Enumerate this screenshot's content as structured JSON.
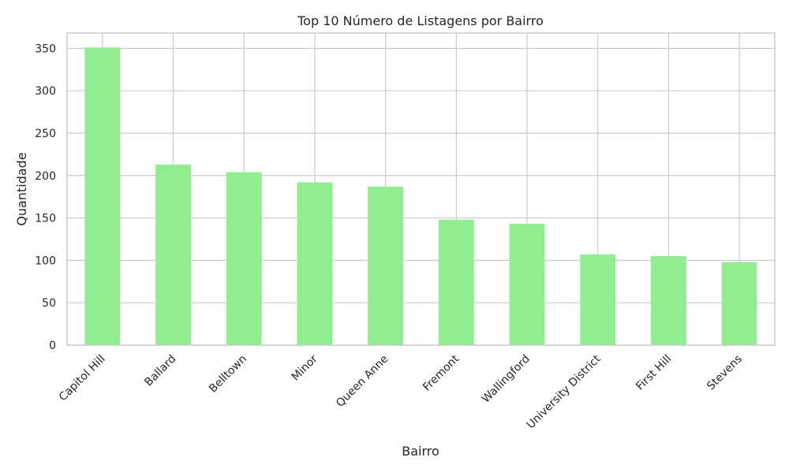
{
  "chart_data": {
    "type": "bar",
    "title": "Top 10 Número de Listagens por Bairro",
    "xlabel": "Bairro",
    "ylabel": "Quantidade",
    "categories": [
      "Capitol Hill",
      "Ballard",
      "Belltown",
      "Minor",
      "Queen Anne",
      "Fremont",
      "Wallingford",
      "University District",
      "First Hill",
      "Stevens"
    ],
    "values": [
      351,
      213,
      204,
      192,
      187,
      148,
      143,
      107,
      105,
      98
    ],
    "ylim": [
      0,
      368
    ],
    "yticks": [
      0,
      50,
      100,
      150,
      200,
      250,
      300,
      350
    ],
    "grid": true,
    "bar_color": "#90ee90",
    "grid_color": "#cccccc",
    "legend": "none"
  }
}
